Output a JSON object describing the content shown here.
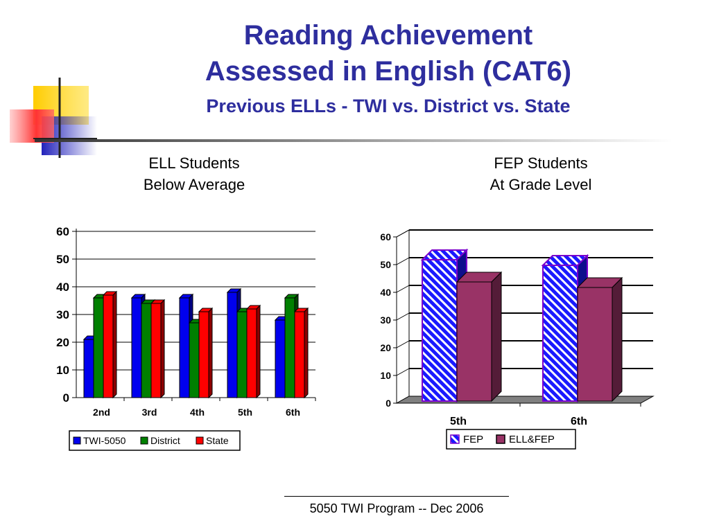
{
  "slide": {
    "title_line1": "Reading Achievement",
    "title_line2": "Assessed in English (CAT6)",
    "subtitle": "Previous ELLs - TWI vs. District vs. State",
    "footer": "5050 TWI Program -- Dec 2006"
  },
  "colors": {
    "title": "#2e2e9e",
    "twi": "#0000ee",
    "district": "#008000",
    "state": "#ff0000",
    "fep": "#1a1aff",
    "ell_fep": "#993366"
  },
  "chart_data": [
    {
      "type": "bar",
      "caption_line1": "ELL Students",
      "caption_line2": "Below Average",
      "categories": [
        "2nd",
        "3rd",
        "4th",
        "5th",
        "6th"
      ],
      "series": [
        {
          "name": "TWI-5050",
          "values": [
            21,
            36,
            36,
            38,
            28
          ]
        },
        {
          "name": "District",
          "values": [
            36,
            34,
            27,
            31,
            36
          ]
        },
        {
          "name": "State",
          "values": [
            37,
            34,
            31,
            32,
            31
          ]
        }
      ],
      "yticks": [
        "0",
        "10",
        "20",
        "30",
        "40",
        "50",
        "60"
      ],
      "ylim": [
        0,
        60
      ],
      "grid": true,
      "legend": "bottom",
      "style": "3d"
    },
    {
      "type": "bar",
      "caption_line1": "FEP Students",
      "caption_line2": "At Grade Level",
      "categories": [
        "5th",
        "6th"
      ],
      "series": [
        {
          "name": "FEP",
          "values": [
            51,
            49
          ]
        },
        {
          "name": "ELL&FEP",
          "values": [
            43,
            41
          ]
        }
      ],
      "yticks": [
        "0",
        "10",
        "20",
        "30",
        "40",
        "50",
        "60"
      ],
      "ylim": [
        0,
        60
      ],
      "grid": true,
      "legend": "bottom",
      "style": "3d"
    }
  ]
}
